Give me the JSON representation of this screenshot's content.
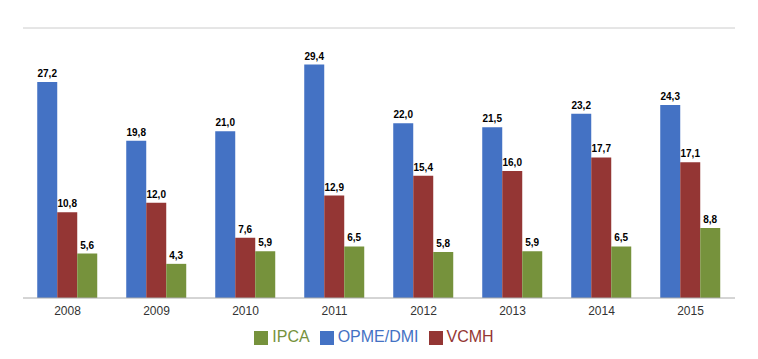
{
  "chart_data": {
    "type": "bar",
    "categories": [
      "2008",
      "2009",
      "2010",
      "2011",
      "2012",
      "2013",
      "2014",
      "2015"
    ],
    "series": [
      {
        "name": "OPME/DMI",
        "color": "#4472C4",
        "values": [
          27.2,
          19.8,
          21.0,
          29.4,
          22.0,
          21.5,
          23.2,
          24.3
        ],
        "value_labels": [
          "27,2",
          "19,8",
          "21,0",
          "29,4",
          "22,0",
          "21,5",
          "23,2",
          "24,3"
        ]
      },
      {
        "name": "VCMH",
        "color": "#943634",
        "values": [
          10.8,
          12.0,
          7.6,
          12.9,
          15.4,
          16.0,
          17.7,
          17.1
        ],
        "value_labels": [
          "10,8",
          "12,0",
          "7,6",
          "12,9",
          "15,4",
          "16,0",
          "17,7",
          "17,1"
        ]
      },
      {
        "name": "IPCA",
        "color": "#76923C",
        "values": [
          5.6,
          4.3,
          5.9,
          6.5,
          5.8,
          5.9,
          6.5,
          8.8
        ],
        "value_labels": [
          "5,6",
          "4,3",
          "5,9",
          "6,5",
          "5,8",
          "5,9",
          "6,5",
          "8,8"
        ]
      }
    ],
    "ylim": [
      0,
      34
    ],
    "grid": false,
    "legend": "bottom",
    "data_labels": true,
    "tick_labels": "x"
  }
}
